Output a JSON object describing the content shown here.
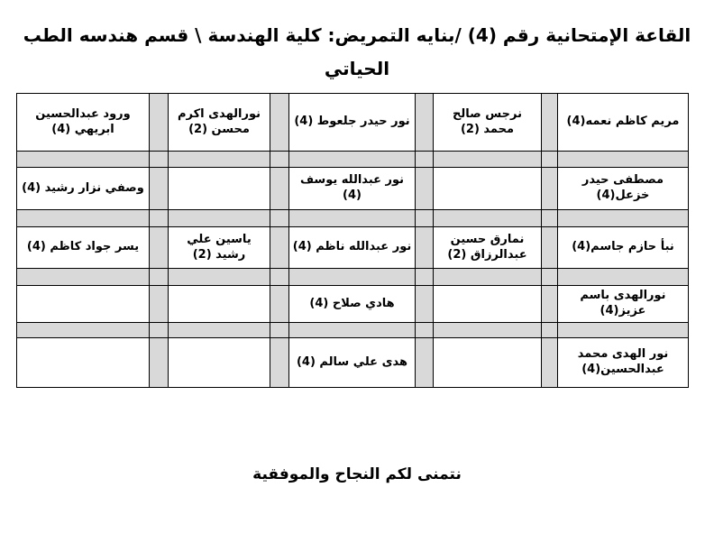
{
  "page": {
    "title_lines": [
      "القاعة الإمتحانية رقم (4) /بنايه التمريض: كلية الهندسة \\ قسم هندسه الطب",
      "الحياتي"
    ],
    "footer": "نتمنى لكم النجاح والموفقية"
  },
  "colors": {
    "background": "#ffffff",
    "shading": "#d9d9d9",
    "border": "#000000",
    "text": "#000000"
  },
  "table": {
    "rows": [
      {
        "cells": [
          "مريم كاظم نعمه(4)",
          "نرجس صالح محمد (2)",
          "نور حيدر جلعوط (4)",
          "نورالهدى اكرم محسن (2)",
          "ورود عبدالحسين ابريهي (4)"
        ]
      },
      {
        "cells": [
          "مصطفى حيدر خزعل(4)",
          "",
          "نور عبدالله يوسف (4)",
          "",
          "وصفي نزار رشيد (4)"
        ]
      },
      {
        "cells": [
          "نبأ حازم جاسم(4)",
          "نمارق حسين عبدالرزاق (2)",
          "نور عبدالله ناظم (4)",
          "ياسين علي رشيد (2)",
          "يسر جواد كاظم (4)"
        ]
      },
      {
        "cells": [
          "نورالهدى باسم عزيز(4)",
          "",
          "هادي صلاح (4)",
          "",
          ""
        ]
      },
      {
        "cells": [
          "نور الهدى محمد عبدالحسين(4)",
          "",
          "هدى علي سالم (4)",
          "",
          ""
        ]
      }
    ]
  }
}
